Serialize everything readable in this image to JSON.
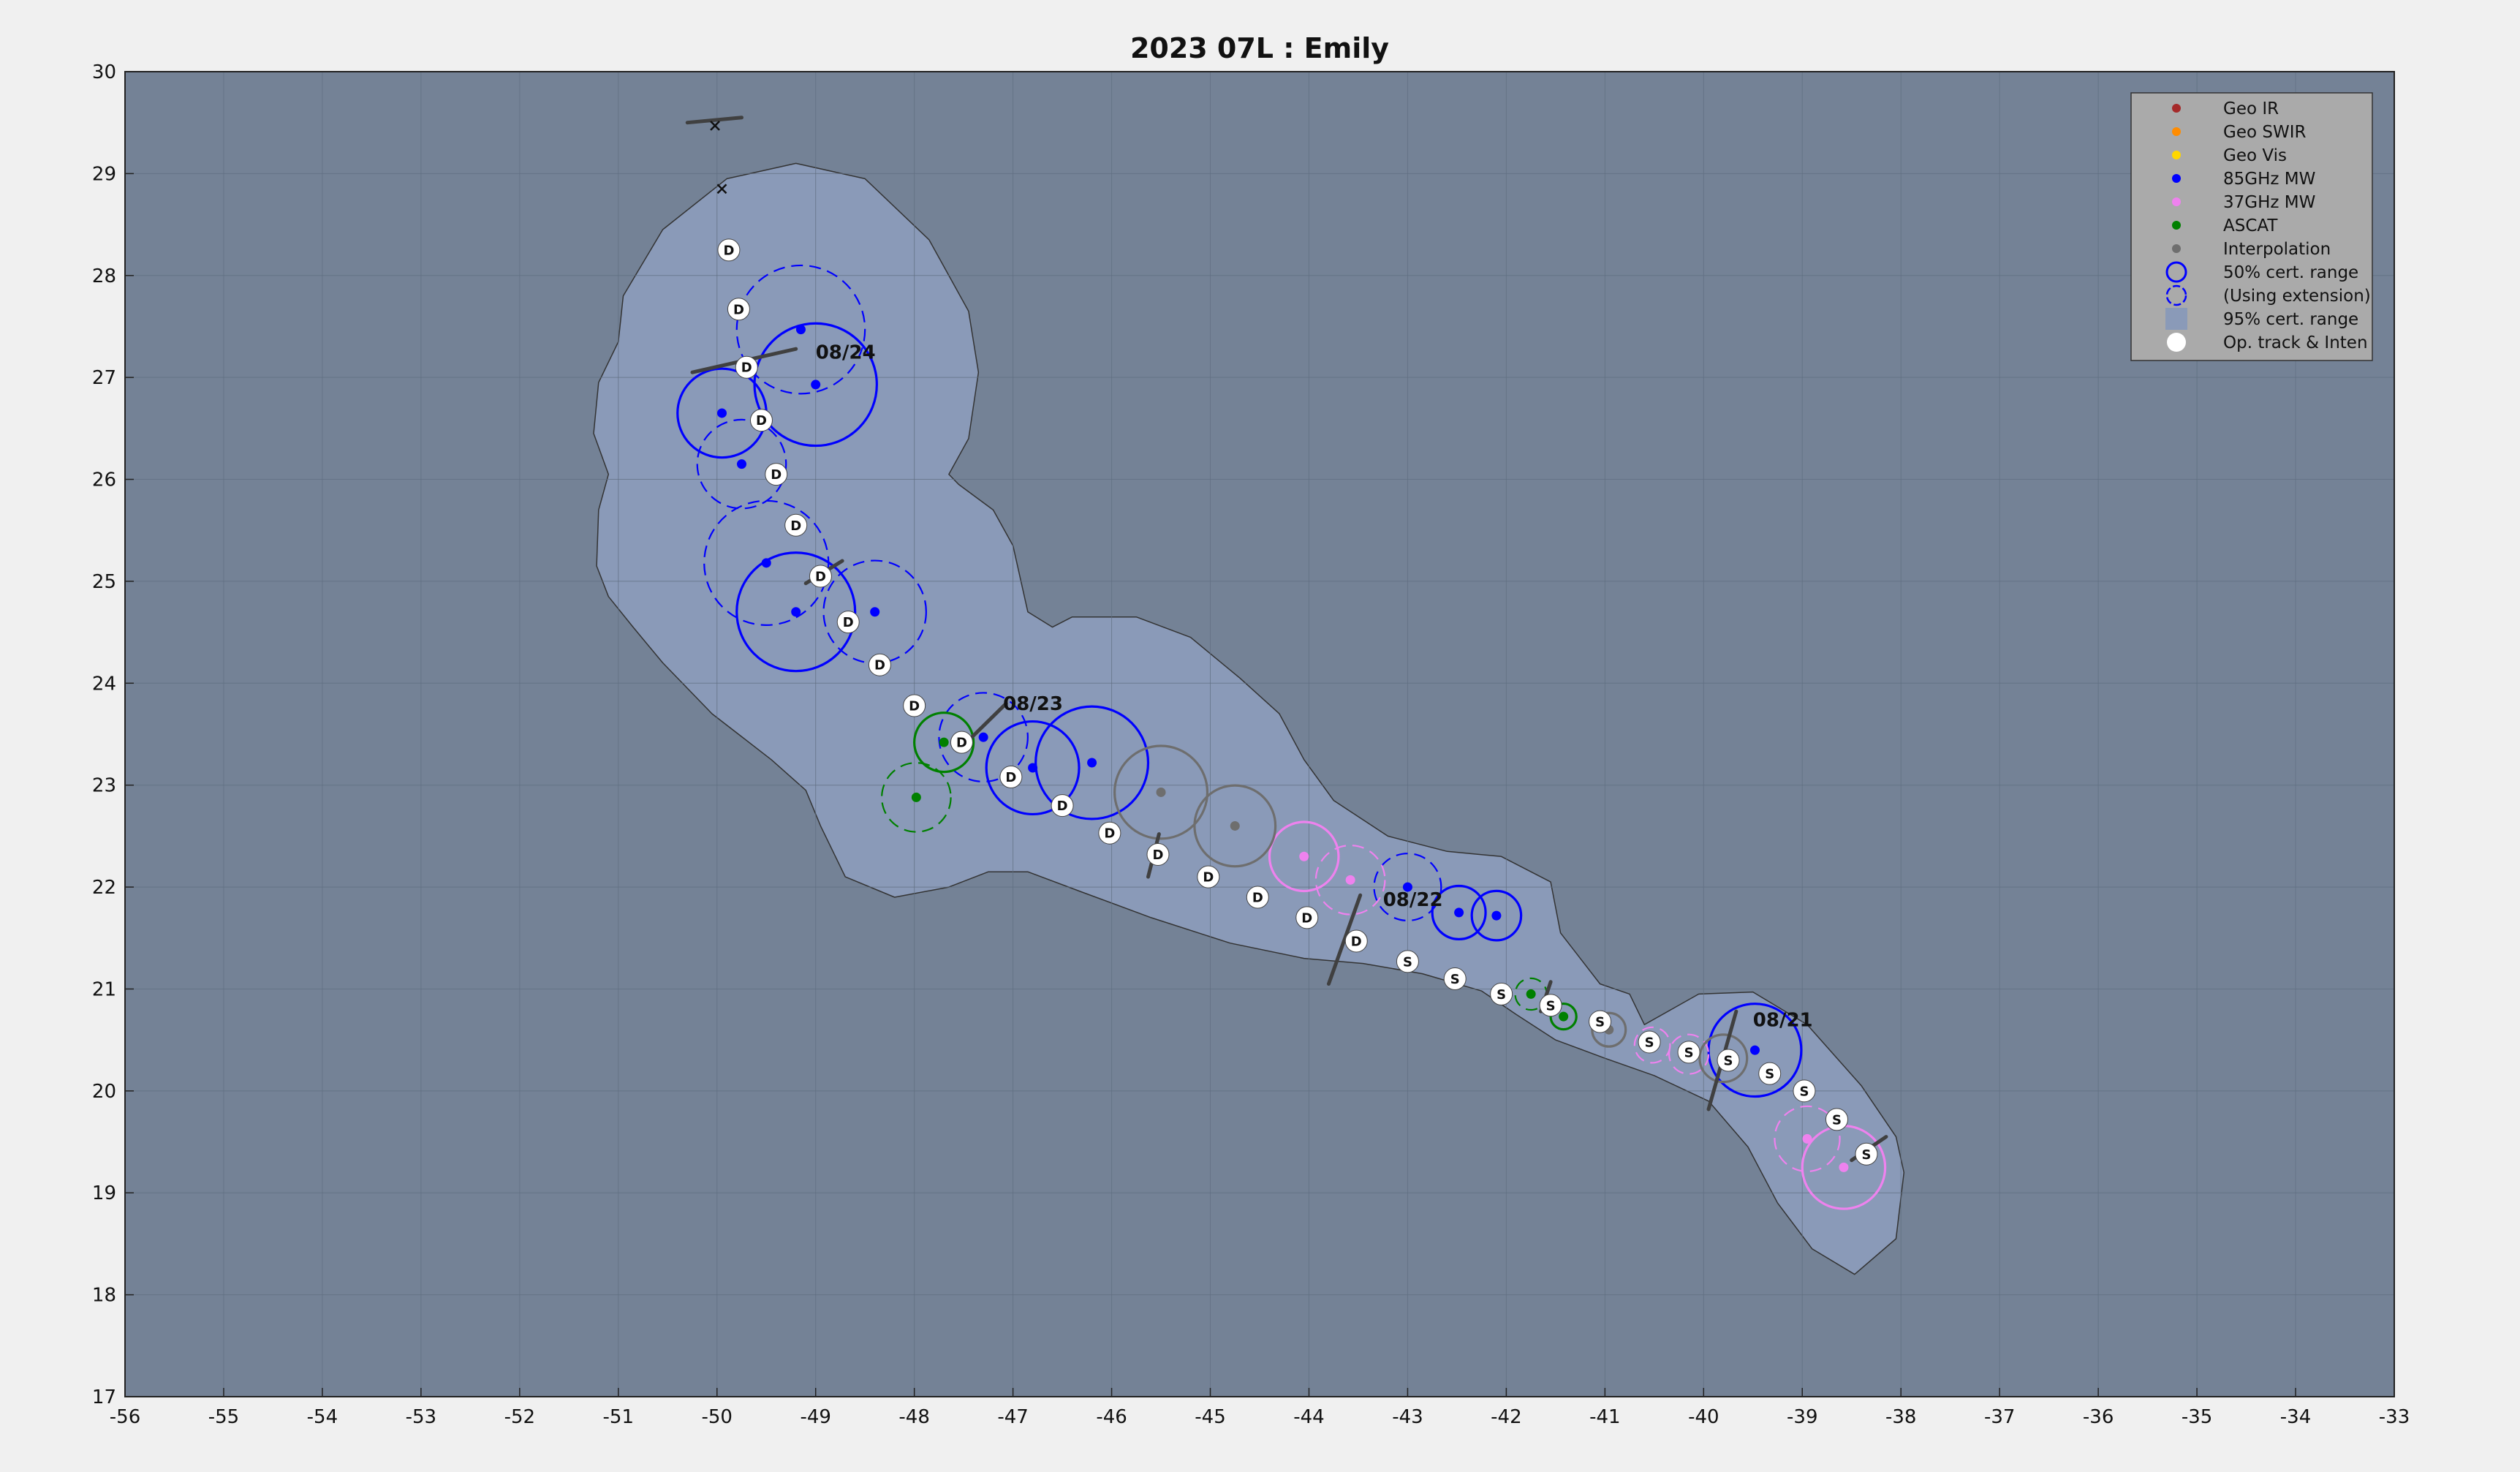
{
  "chart_data": {
    "type": "scatter",
    "title": "2023  07L :  Emily",
    "xlim": [
      -56,
      -33
    ],
    "ylim": [
      17,
      30
    ],
    "xticks": [
      "-56",
      "-55",
      "-54",
      "-53",
      "-52",
      "-51",
      "-50",
      "-49",
      "-48",
      "-47",
      "-46",
      "-45",
      "-44",
      "-43",
      "-42",
      "-41",
      "-40",
      "-39",
      "-38",
      "-37",
      "-36",
      "-35",
      "-34",
      "-33"
    ],
    "yticks": [
      "17",
      "18",
      "19",
      "20",
      "21",
      "22",
      "23",
      "24",
      "25",
      "26",
      "27",
      "28",
      "29",
      "30"
    ],
    "grid": true,
    "legend_position": "top-right",
    "legend": [
      {
        "label": "Geo IR",
        "kind": "dot",
        "color": "#a52a2a"
      },
      {
        "label": "Geo SWIR",
        "kind": "dot",
        "color": "#ff8c00"
      },
      {
        "label": "Geo Vis",
        "kind": "dot",
        "color": "#ffd700"
      },
      {
        "label": "85GHz MW",
        "kind": "dot",
        "color": "#0000ff"
      },
      {
        "label": "37GHz MW",
        "kind": "dot",
        "color": "#ee82ee"
      },
      {
        "label": "ASCAT",
        "kind": "dot",
        "color": "#008000"
      },
      {
        "label": "Interpolation",
        "kind": "dot",
        "color": "#6e6e6e"
      },
      {
        "label": "50% cert. range",
        "kind": "circle",
        "color": "#0000ff"
      },
      {
        "label": "(Using extension)",
        "kind": "dashed-circle",
        "color": "#0000ff"
      },
      {
        "label": "95% cert. range",
        "kind": "patch",
        "color": "#8a9ab8"
      },
      {
        "label": "Op. track & Inten",
        "kind": "white-dot",
        "color": "#ffffff"
      }
    ],
    "colors": {
      "background": "#748296",
      "cert95": "#8a9ab8",
      "grid": "#5f6d80",
      "mw85": "#0000ff",
      "mw37": "#ee82ee",
      "ascat": "#008000",
      "interp": "#6e6e6e",
      "wind_bar": "#404040"
    },
    "date_labels": [
      {
        "text": "08/24",
        "x": -49.0,
        "y": 27.25
      },
      {
        "text": "08/23",
        "x": -47.1,
        "y": 23.8
      },
      {
        "text": "08/22",
        "x": -43.25,
        "y": 21.88
      },
      {
        "text": "08/21",
        "x": -39.5,
        "y": 20.7
      }
    ],
    "op_track": [
      {
        "x": -38.35,
        "y": 19.38,
        "intensity": "S"
      },
      {
        "x": -38.65,
        "y": 19.72,
        "intensity": "S"
      },
      {
        "x": -38.98,
        "y": 20.0,
        "intensity": "S"
      },
      {
        "x": -39.33,
        "y": 20.17,
        "intensity": "S"
      },
      {
        "x": -39.75,
        "y": 20.3,
        "intensity": "S"
      },
      {
        "x": -40.15,
        "y": 20.38,
        "intensity": "S"
      },
      {
        "x": -40.55,
        "y": 20.48,
        "intensity": "S"
      },
      {
        "x": -41.05,
        "y": 20.68,
        "intensity": "S"
      },
      {
        "x": -41.55,
        "y": 20.84,
        "intensity": "S"
      },
      {
        "x": -42.05,
        "y": 20.95,
        "intensity": "S"
      },
      {
        "x": -42.52,
        "y": 21.1,
        "intensity": "S"
      },
      {
        "x": -43.0,
        "y": 21.27,
        "intensity": "S"
      },
      {
        "x": -43.52,
        "y": 21.47,
        "intensity": "D"
      },
      {
        "x": -44.02,
        "y": 21.7,
        "intensity": "D"
      },
      {
        "x": -44.52,
        "y": 21.9,
        "intensity": "D"
      },
      {
        "x": -45.02,
        "y": 22.1,
        "intensity": "D"
      },
      {
        "x": -45.53,
        "y": 22.32,
        "intensity": "D"
      },
      {
        "x": -46.02,
        "y": 22.53,
        "intensity": "D"
      },
      {
        "x": -46.5,
        "y": 22.8,
        "intensity": "D"
      },
      {
        "x": -47.02,
        "y": 23.08,
        "intensity": "D"
      },
      {
        "x": -47.52,
        "y": 23.42,
        "intensity": "D"
      },
      {
        "x": -48.0,
        "y": 23.78,
        "intensity": "D"
      },
      {
        "x": -48.35,
        "y": 24.18,
        "intensity": "D"
      },
      {
        "x": -48.67,
        "y": 24.6,
        "intensity": "D"
      },
      {
        "x": -48.95,
        "y": 25.05,
        "intensity": "D"
      },
      {
        "x": -49.2,
        "y": 25.55,
        "intensity": "D"
      },
      {
        "x": -49.4,
        "y": 26.05,
        "intensity": "D"
      },
      {
        "x": -49.55,
        "y": 26.58,
        "intensity": "D"
      },
      {
        "x": -49.7,
        "y": 27.1,
        "intensity": "D"
      },
      {
        "x": -49.78,
        "y": 27.67,
        "intensity": "D"
      },
      {
        "x": -49.88,
        "y": 28.25,
        "intensity": "D"
      }
    ],
    "fixes": [
      {
        "type": "mw85",
        "x": -39.48,
        "y": 20.4,
        "r": 0.47,
        "dashed": false
      },
      {
        "type": "mw85",
        "x": -42.1,
        "y": 21.72,
        "r": 0.25,
        "dashed": false
      },
      {
        "type": "mw85",
        "x": -42.48,
        "y": 21.75,
        "r": 0.27,
        "dashed": false
      },
      {
        "type": "mw85",
        "x": -43.0,
        "y": 22.0,
        "r": 0.34,
        "dashed": true
      },
      {
        "type": "mw85",
        "x": -46.2,
        "y": 23.22,
        "r": 0.57,
        "dashed": false
      },
      {
        "type": "mw85",
        "x": -46.8,
        "y": 23.17,
        "r": 0.47,
        "dashed": false
      },
      {
        "type": "mw85",
        "x": -47.3,
        "y": 23.47,
        "r": 0.45,
        "dashed": true
      },
      {
        "type": "mw85",
        "x": -48.4,
        "y": 24.7,
        "r": 0.52,
        "dashed": true
      },
      {
        "type": "mw85",
        "x": -49.2,
        "y": 24.7,
        "r": 0.6,
        "dashed": false
      },
      {
        "type": "mw85",
        "x": -49.5,
        "y": 25.18,
        "r": 0.63,
        "dashed": true
      },
      {
        "type": "mw85",
        "x": -49.75,
        "y": 26.15,
        "r": 0.45,
        "dashed": true
      },
      {
        "type": "mw85",
        "x": -49.95,
        "y": 26.65,
        "r": 0.45,
        "dashed": false
      },
      {
        "type": "mw85",
        "x": -49.0,
        "y": 26.93,
        "r": 0.62,
        "dashed": false
      },
      {
        "type": "mw85",
        "x": -49.15,
        "y": 27.47,
        "r": 0.65,
        "dashed": true
      },
      {
        "type": "mw37",
        "x": -38.58,
        "y": 19.25,
        "r": 0.42,
        "dashed": false
      },
      {
        "type": "mw37",
        "x": -38.95,
        "y": 19.53,
        "r": 0.33,
        "dashed": true
      },
      {
        "type": "mw37",
        "x": -40.15,
        "y": 20.36,
        "r": 0.2,
        "dashed": true
      },
      {
        "type": "mw37",
        "x": -40.52,
        "y": 20.45,
        "r": 0.18,
        "dashed": true
      },
      {
        "type": "mw37",
        "x": -43.58,
        "y": 22.07,
        "r": 0.35,
        "dashed": true
      },
      {
        "type": "mw37",
        "x": -44.05,
        "y": 22.3,
        "r": 0.35,
        "dashed": false
      },
      {
        "type": "ascat",
        "x": -41.42,
        "y": 20.73,
        "r": 0.13,
        "dashed": false
      },
      {
        "type": "ascat",
        "x": -41.75,
        "y": 20.95,
        "r": 0.16,
        "dashed": true
      },
      {
        "type": "ascat",
        "x": -47.7,
        "y": 23.42,
        "r": 0.3,
        "dashed": false
      },
      {
        "type": "ascat",
        "x": -47.98,
        "y": 22.88,
        "r": 0.35,
        "dashed": true
      },
      {
        "type": "interp",
        "x": -39.8,
        "y": 20.32,
        "r": 0.24,
        "dashed": false
      },
      {
        "type": "interp",
        "x": -40.96,
        "y": 20.6,
        "r": 0.17,
        "dashed": false
      },
      {
        "type": "interp",
        "x": -44.75,
        "y": 22.6,
        "r": 0.41,
        "dashed": false
      },
      {
        "type": "interp",
        "x": -45.5,
        "y": 22.93,
        "r": 0.47,
        "dashed": false
      }
    ],
    "wind_bars": [
      {
        "x1": -38.15,
        "y1": 19.55,
        "x2": -38.5,
        "y2": 19.32
      },
      {
        "x1": -39.67,
        "y1": 20.78,
        "x2": -39.95,
        "y2": 19.82
      },
      {
        "x1": -41.55,
        "y1": 21.07,
        "x2": -41.65,
        "y2": 20.78
      },
      {
        "x1": -43.48,
        "y1": 21.92,
        "x2": -43.8,
        "y2": 21.05
      },
      {
        "x1": -45.52,
        "y1": 22.52,
        "x2": -45.63,
        "y2": 22.1
      },
      {
        "x1": -47.07,
        "y1": 23.8,
        "x2": -47.47,
        "y2": 23.42
      },
      {
        "x1": -48.73,
        "y1": 25.2,
        "x2": -49.1,
        "y2": 24.98
      },
      {
        "x1": -49.2,
        "y1": 27.28,
        "x2": -50.25,
        "y2": 27.05
      },
      {
        "x1": -49.75,
        "y1": 29.55,
        "x2": -50.3,
        "y2": 29.5
      }
    ],
    "x_marks": [
      {
        "x": -50.02,
        "y": 29.47
      },
      {
        "x": -49.95,
        "y": 28.85
      }
    ],
    "cert95_outline": [
      [
        -38.47,
        18.2
      ],
      [
        -38.05,
        18.55
      ],
      [
        -37.97,
        19.2
      ],
      [
        -38.05,
        19.55
      ],
      [
        -38.4,
        20.05
      ],
      [
        -38.95,
        20.65
      ],
      [
        -39.5,
        20.97
      ],
      [
        -40.05,
        20.95
      ],
      [
        -40.6,
        20.65
      ],
      [
        -40.75,
        20.95
      ],
      [
        -41.05,
        21.05
      ],
      [
        -41.45,
        21.55
      ],
      [
        -41.55,
        22.05
      ],
      [
        -42.05,
        22.3
      ],
      [
        -42.6,
        22.35
      ],
      [
        -43.2,
        22.5
      ],
      [
        -43.75,
        22.85
      ],
      [
        -44.05,
        23.25
      ],
      [
        -44.3,
        23.7
      ],
      [
        -44.7,
        24.05
      ],
      [
        -45.2,
        24.45
      ],
      [
        -45.75,
        24.65
      ],
      [
        -46.4,
        24.65
      ],
      [
        -46.6,
        24.55
      ],
      [
        -46.85,
        24.7
      ],
      [
        -47.0,
        25.35
      ],
      [
        -47.2,
        25.7
      ],
      [
        -47.55,
        25.95
      ],
      [
        -47.65,
        26.05
      ],
      [
        -47.45,
        26.4
      ],
      [
        -47.35,
        27.05
      ],
      [
        -47.45,
        27.65
      ],
      [
        -47.85,
        28.35
      ],
      [
        -48.5,
        28.95
      ],
      [
        -49.2,
        29.1
      ],
      [
        -49.9,
        28.95
      ],
      [
        -50.55,
        28.45
      ],
      [
        -50.95,
        27.8
      ],
      [
        -51.0,
        27.35
      ],
      [
        -51.2,
        26.95
      ],
      [
        -51.25,
        26.45
      ],
      [
        -51.1,
        26.05
      ],
      [
        -51.2,
        25.7
      ],
      [
        -51.22,
        25.15
      ],
      [
        -51.1,
        24.85
      ],
      [
        -50.85,
        24.55
      ],
      [
        -50.55,
        24.2
      ],
      [
        -50.05,
        23.7
      ],
      [
        -49.45,
        23.25
      ],
      [
        -49.1,
        22.95
      ],
      [
        -48.95,
        22.6
      ],
      [
        -48.7,
        22.1
      ],
      [
        -48.2,
        21.9
      ],
      [
        -47.65,
        22.0
      ],
      [
        -47.25,
        22.15
      ],
      [
        -46.85,
        22.15
      ],
      [
        -46.3,
        21.95
      ],
      [
        -45.6,
        21.7
      ],
      [
        -44.8,
        21.45
      ],
      [
        -44.05,
        21.3
      ],
      [
        -43.45,
        21.25
      ],
      [
        -42.85,
        21.15
      ],
      [
        -42.25,
        20.98
      ],
      [
        -41.9,
        20.75
      ],
      [
        -41.5,
        20.5
      ],
      [
        -41.0,
        20.32
      ],
      [
        -40.5,
        20.15
      ],
      [
        -39.95,
        19.9
      ],
      [
        -39.55,
        19.45
      ],
      [
        -39.25,
        18.9
      ],
      [
        -38.9,
        18.45
      ]
    ]
  }
}
